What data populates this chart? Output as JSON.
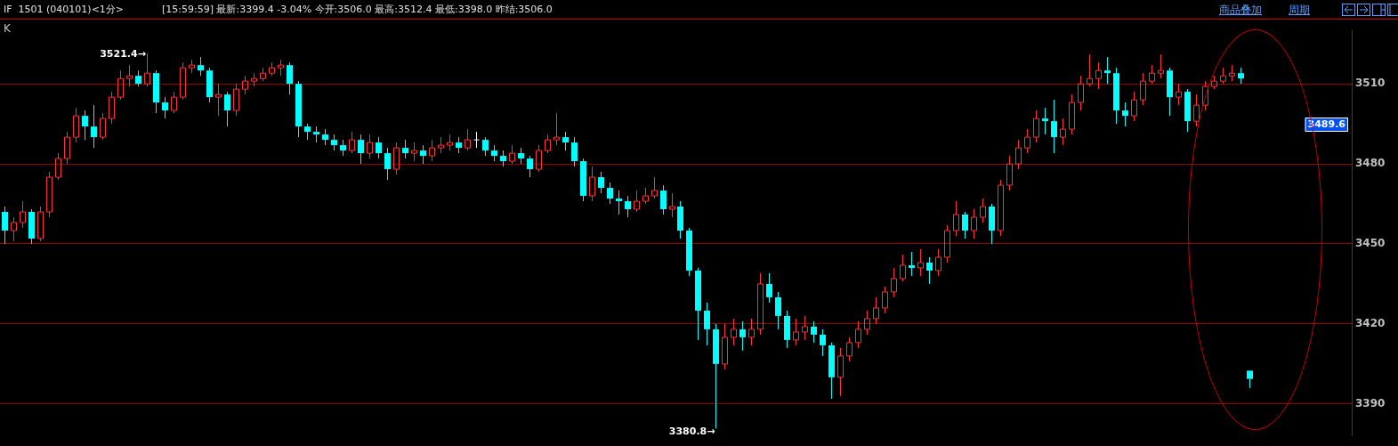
{
  "chart_data": {
    "type": "candlestick",
    "title": "IF  1501 (040101)<1分>",
    "subtitle": "[15:59:59] 最新:3399.4 -3.04% 今开:3506.0 最高:3512.4 最低:3398.0 昨结:3506.0",
    "categories": [
      null,
      null,
      null,
      null,
      null,
      null,
      null,
      null,
      null,
      null,
      null,
      null,
      null,
      null,
      null,
      null,
      null,
      null,
      null,
      null,
      null,
      null,
      null,
      null,
      null,
      null,
      null,
      null,
      null,
      null,
      null,
      null,
      null,
      null,
      null,
      null,
      null,
      null,
      null,
      null,
      null,
      null,
      null,
      null,
      null,
      null,
      null,
      null,
      null,
      null,
      null,
      null,
      null,
      null,
      null,
      null,
      null,
      null,
      null,
      null,
      null,
      null,
      null,
      null,
      null,
      null,
      null,
      null,
      null,
      null,
      null,
      null,
      null,
      null,
      null,
      null,
      null,
      null,
      null,
      null,
      null,
      null,
      null,
      null,
      null,
      null,
      null,
      null,
      null,
      null,
      null,
      null,
      null,
      null,
      null,
      null,
      null,
      null,
      null,
      null,
      null,
      null,
      null,
      null,
      null,
      null,
      null,
      null,
      null,
      null,
      null,
      null,
      null,
      null,
      null,
      null,
      null,
      null,
      null,
      null,
      null,
      null,
      null,
      null,
      null,
      null,
      null,
      null,
      null,
      null,
      null,
      null,
      null,
      null,
      null,
      null,
      null,
      null,
      null,
      null,
      null,
      null,
      null,
      null,
      null,
      null,
      null,
      null,
      null,
      null,
      null,
      null
    ],
    "ohlc": [
      [
        3462,
        3464,
        3450,
        3455
      ],
      [
        3455,
        3460,
        3451,
        3458
      ],
      [
        3458,
        3466,
        3456,
        3462
      ],
      [
        3462,
        3463,
        3450,
        3452
      ],
      [
        3452,
        3464,
        3451,
        3462
      ],
      [
        3462,
        3477,
        3460,
        3475
      ],
      [
        3475,
        3484,
        3474,
        3482
      ],
      [
        3482,
        3492,
        3480,
        3490
      ],
      [
        3490,
        3501,
        3488,
        3498
      ],
      [
        3498,
        3500,
        3489,
        3494
      ],
      [
        3494,
        3502,
        3486,
        3490
      ],
      [
        3490,
        3499,
        3489,
        3497
      ],
      [
        3497,
        3507,
        3495,
        3505
      ],
      [
        3505,
        3515,
        3504,
        3512
      ],
      [
        3512,
        3517,
        3509,
        3513
      ],
      [
        3513,
        3515,
        3509,
        3510
      ],
      [
        3510,
        3521.4,
        3509,
        3514
      ],
      [
        3514,
        3515,
        3499,
        3503
      ],
      [
        3503,
        3505,
        3497,
        3500
      ],
      [
        3500,
        3507,
        3499,
        3505
      ],
      [
        3505,
        3518,
        3504,
        3516
      ],
      [
        3516,
        3519,
        3514,
        3517
      ],
      [
        3517,
        3520,
        3513,
        3515
      ],
      [
        3515,
        3516,
        3503,
        3505
      ],
      [
        3505,
        3510,
        3498,
        3506
      ],
      [
        3506,
        3507,
        3494,
        3500
      ],
      [
        3500,
        3510,
        3498,
        3508
      ],
      [
        3508,
        3513,
        3506,
        3511
      ],
      [
        3511,
        3514,
        3509,
        3512
      ],
      [
        3512,
        3516,
        3511,
        3514
      ],
      [
        3514,
        3518,
        3513,
        3516
      ],
      [
        3516,
        3519,
        3513,
        3517
      ],
      [
        3517,
        3518,
        3506,
        3510
      ],
      [
        3510,
        3511,
        3490,
        3494
      ],
      [
        3494,
        3495,
        3489,
        3492
      ],
      [
        3492,
        3494,
        3488,
        3491
      ],
      [
        3491,
        3493,
        3487,
        3489
      ],
      [
        3489,
        3491,
        3485,
        3487
      ],
      [
        3487,
        3489,
        3483,
        3485
      ],
      [
        3485,
        3492,
        3484,
        3489
      ],
      [
        3489,
        3491,
        3480,
        3484
      ],
      [
        3484,
        3491,
        3482,
        3488
      ],
      [
        3488,
        3490,
        3482,
        3484
      ],
      [
        3484,
        3486,
        3474,
        3478
      ],
      [
        3478,
        3488,
        3476,
        3486
      ],
      [
        3486,
        3489,
        3482,
        3484
      ],
      [
        3484,
        3488,
        3481,
        3485
      ],
      [
        3485,
        3487,
        3480,
        3483
      ],
      [
        3483,
        3489,
        3481,
        3486
      ],
      [
        3486,
        3490,
        3484,
        3487
      ],
      [
        3487,
        3491,
        3485,
        3488
      ],
      [
        3488,
        3490,
        3484,
        3486
      ],
      [
        3486,
        3493,
        3485,
        3489
      ],
      [
        3489,
        3492,
        3486,
        3489
      ],
      [
        3489,
        3490,
        3483,
        3485
      ],
      [
        3485,
        3487,
        3481,
        3483
      ],
      [
        3483,
        3485,
        3479,
        3481
      ],
      [
        3481,
        3487,
        3480,
        3484
      ],
      [
        3484,
        3486,
        3480,
        3482
      ],
      [
        3482,
        3483,
        3475,
        3478
      ],
      [
        3478,
        3487,
        3477,
        3485
      ],
      [
        3485,
        3491,
        3484,
        3489
      ],
      [
        3489,
        3499,
        3487,
        3490
      ],
      [
        3490,
        3492,
        3485,
        3488
      ],
      [
        3488,
        3490,
        3479,
        3481
      ],
      [
        3481,
        3482,
        3466,
        3468
      ],
      [
        3468,
        3479,
        3466,
        3475
      ],
      [
        3475,
        3477,
        3469,
        3471
      ],
      [
        3471,
        3473,
        3465,
        3467
      ],
      [
        3467,
        3470,
        3461,
        3466
      ],
      [
        3466,
        3468,
        3460,
        3463
      ],
      [
        3463,
        3470,
        3462,
        3466
      ],
      [
        3466,
        3471,
        3465,
        3468
      ],
      [
        3468,
        3475,
        3467,
        3470
      ],
      [
        3470,
        3472,
        3461,
        3463
      ],
      [
        3463,
        3469,
        3460,
        3464
      ],
      [
        3464,
        3466,
        3452,
        3455
      ],
      [
        3455,
        3456,
        3438,
        3440
      ],
      [
        3440,
        3441,
        3414,
        3425
      ],
      [
        3425,
        3428,
        3412,
        3418
      ],
      [
        3418,
        3420,
        3380.8,
        3405
      ],
      [
        3405,
        3420,
        3403,
        3415
      ],
      [
        3415,
        3422,
        3412,
        3418
      ],
      [
        3418,
        3421,
        3410,
        3415
      ],
      [
        3415,
        3422,
        3412,
        3418
      ],
      [
        3418,
        3439,
        3416,
        3435
      ],
      [
        3435,
        3439,
        3428,
        3430
      ],
      [
        3430,
        3432,
        3418,
        3423
      ],
      [
        3423,
        3425,
        3411,
        3414
      ],
      [
        3414,
        3422,
        3412,
        3417
      ],
      [
        3417,
        3423,
        3414,
        3419
      ],
      [
        3419,
        3421,
        3413,
        3416
      ],
      [
        3416,
        3418,
        3408,
        3412
      ],
      [
        3412,
        3413,
        3392,
        3400
      ],
      [
        3400,
        3411,
        3393,
        3408
      ],
      [
        3408,
        3415,
        3406,
        3413
      ],
      [
        3413,
        3421,
        3411,
        3418
      ],
      [
        3418,
        3425,
        3416,
        3422
      ],
      [
        3422,
        3430,
        3420,
        3426
      ],
      [
        3426,
        3434,
        3424,
        3432
      ],
      [
        3432,
        3441,
        3430,
        3437
      ],
      [
        3437,
        3446,
        3436,
        3442
      ],
      [
        3442,
        3447,
        3438,
        3441
      ],
      [
        3441,
        3448,
        3438,
        3443
      ],
      [
        3443,
        3445,
        3435,
        3440
      ],
      [
        3440,
        3448,
        3438,
        3445
      ],
      [
        3445,
        3457,
        3443,
        3455
      ],
      [
        3455,
        3466,
        3453,
        3461
      ],
      [
        3461,
        3462,
        3452,
        3455
      ],
      [
        3455,
        3463,
        3452,
        3460
      ],
      [
        3460,
        3467,
        3458,
        3464
      ],
      [
        3464,
        3465,
        3450,
        3455
      ],
      [
        3455,
        3474,
        3453,
        3472
      ],
      [
        3472,
        3483,
        3470,
        3480
      ],
      [
        3480,
        3489,
        3478,
        3486
      ],
      [
        3486,
        3493,
        3484,
        3490
      ],
      [
        3490,
        3500,
        3488,
        3497
      ],
      [
        3497,
        3501,
        3491,
        3496
      ],
      [
        3496,
        3504,
        3484,
        3490
      ],
      [
        3490,
        3497,
        3487,
        3493
      ],
      [
        3493,
        3506,
        3491,
        3503
      ],
      [
        3503,
        3513,
        3500,
        3510
      ],
      [
        3510,
        3521,
        3509,
        3512
      ],
      [
        3512,
        3518,
        3508,
        3515
      ],
      [
        3515,
        3520,
        3510,
        3514
      ],
      [
        3514,
        3516,
        3495,
        3500
      ],
      [
        3500,
        3503,
        3494,
        3498
      ],
      [
        3498,
        3507,
        3496,
        3504
      ],
      [
        3504,
        3514,
        3502,
        3511
      ],
      [
        3511,
        3517,
        3510,
        3514
      ],
      [
        3514,
        3521,
        3512,
        3515
      ],
      [
        3515,
        3516,
        3498,
        3505
      ],
      [
        3505,
        3510,
        3502,
        3507
      ],
      [
        3507,
        3508,
        3492,
        3496
      ],
      [
        3496,
        3506,
        3494,
        3502
      ],
      [
        3502,
        3511,
        3500,
        3509
      ],
      [
        3509,
        3513,
        3508,
        3511
      ],
      [
        3511,
        3516,
        3510,
        3513
      ],
      [
        3513,
        3517,
        3511,
        3514
      ],
      [
        3514,
        3516,
        3510,
        3512
      ],
      [
        3402.5,
        3402.5,
        3396,
        3399.4
      ],
      null,
      null,
      null,
      null,
      null,
      null,
      null,
      null,
      null,
      null,
      null
    ],
    "colors": [
      "#00ffff",
      "#ff3333",
      "#ff3333",
      "#00ffff",
      "#ff3333",
      "#ff3333",
      "#ff3333",
      "#ff3333",
      "#ff3333",
      "#00ffff",
      "#00ffff",
      "#ff3333",
      "#ff3333",
      "#ff3333",
      "#ff3333",
      "#00ffff",
      "#ff3333",
      "#00ffff",
      "#00ffff",
      "#ff3333",
      "#ff3333",
      "#ff3333",
      "#00ffff",
      "#00ffff",
      "#ff3333",
      "#00ffff",
      "#ff3333",
      "#ff3333",
      "#ff3333",
      "#ff3333",
      "#ff3333",
      "#ff3333",
      "#00ffff",
      "#00ffff",
      "#00ffff",
      "#00ffff",
      "#00ffff",
      "#00ffff",
      "#00ffff",
      "#ff3333",
      "#00ffff",
      "#ff3333",
      "#00ffff",
      "#00ffff",
      "#ff3333",
      "#00ffff",
      "#ff3333",
      "#00ffff",
      "#ff3333",
      "#ff3333",
      "#ff3333",
      "#00ffff",
      "#ff3333",
      "#ffffff",
      "#00ffff",
      "#00ffff",
      "#00ffff",
      "#ff3333",
      "#00ffff",
      "#00ffff",
      "#ff3333",
      "#ff3333",
      "#ff3333",
      "#00ffff",
      "#00ffff",
      "#00ffff",
      "#ff3333",
      "#00ffff",
      "#00ffff",
      "#00ffff",
      "#00ffff",
      "#ff3333",
      "#ff3333",
      "#ff3333",
      "#00ffff",
      "#ff3333",
      "#00ffff",
      "#00ffff",
      "#00ffff",
      "#00ffff",
      "#00ffff",
      "#ff3333",
      "#ff3333",
      "#00ffff",
      "#ff3333",
      "#ff3333",
      "#00ffff",
      "#00ffff",
      "#00ffff",
      "#ff3333",
      "#ff3333",
      "#00ffff",
      "#00ffff",
      "#00ffff",
      "#ff3333",
      "#ff3333",
      "#ff3333",
      "#ff3333",
      "#ff3333",
      "#ff3333",
      "#ff3333",
      "#ff3333",
      "#00ffff",
      "#ff3333",
      "#00ffff",
      "#ff3333",
      "#ff3333",
      "#ff3333",
      "#00ffff",
      "#ff3333",
      "#ff3333",
      "#00ffff",
      "#ff3333",
      "#ff3333",
      "#ff3333",
      "#ff3333",
      "#ff3333",
      "#00ffff",
      "#00ffff",
      "#ff3333",
      "#ff3333",
      "#ff3333",
      "#ff3333",
      "#ff3333",
      "#00ffff",
      "#00ffff",
      "#00ffff",
      "#ff3333",
      "#ff3333",
      "#ff3333",
      "#ff3333",
      "#00ffff",
      "#ff3333",
      "#00ffff",
      "#ff3333",
      "#ff3333",
      "#ff3333",
      "#ff3333",
      "#ff3333",
      "#00ffff",
      "#00ffff",
      null,
      null,
      null,
      null,
      null,
      null,
      null,
      null,
      null,
      null,
      null
    ],
    "ylim": [
      3378,
      3530
    ],
    "yticks": [
      3390,
      3420,
      3450,
      3480,
      3510
    ],
    "grid": "y",
    "annotations": [
      "K",
      "商品叠加",
      "周期",
      "3521.4→",
      "3380.8→",
      "3489.6"
    ]
  }
}
